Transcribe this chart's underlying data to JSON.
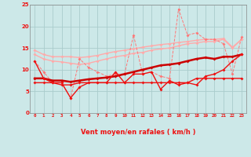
{
  "xlabel": "Vent moyen/en rafales ( km/h )",
  "hours": [
    0,
    1,
    2,
    3,
    4,
    5,
    6,
    7,
    8,
    9,
    10,
    11,
    12,
    13,
    14,
    15,
    16,
    17,
    18,
    19,
    20,
    21,
    22,
    23
  ],
  "line1_upper_pink": [
    14.5,
    13.5,
    13.0,
    13.0,
    13.0,
    12.8,
    13.0,
    13.3,
    13.8,
    14.2,
    14.5,
    14.8,
    15.2,
    15.5,
    15.8,
    16.0,
    16.3,
    16.5,
    16.8,
    17.0,
    17.0,
    17.2,
    15.2,
    17.0
  ],
  "line2_upper_pink": [
    13.5,
    12.5,
    12.0,
    11.8,
    11.5,
    11.2,
    11.5,
    12.0,
    12.5,
    13.0,
    13.3,
    13.8,
    14.0,
    14.5,
    14.8,
    15.0,
    15.5,
    16.0,
    16.2,
    16.5,
    16.5,
    17.0,
    15.0,
    17.0
  ],
  "line3_pink_jagged": [
    12.0,
    9.5,
    7.0,
    7.0,
    3.5,
    12.5,
    10.5,
    9.5,
    8.5,
    9.0,
    9.0,
    18.0,
    9.0,
    9.5,
    8.5,
    8.0,
    24.0,
    18.0,
    18.5,
    17.0,
    17.0,
    16.0,
    9.0,
    17.5
  ],
  "line4_red_smooth": [
    8.0,
    8.0,
    7.5,
    7.5,
    7.2,
    7.5,
    7.8,
    8.0,
    8.2,
    8.5,
    9.0,
    9.5,
    10.0,
    10.5,
    11.0,
    11.2,
    11.5,
    12.0,
    12.5,
    12.8,
    12.5,
    13.0,
    13.0,
    13.5
  ],
  "line5_red_lower": [
    7.0,
    7.0,
    7.0,
    6.5,
    6.5,
    7.0,
    7.0,
    7.0,
    7.0,
    7.0,
    7.0,
    7.0,
    7.0,
    7.0,
    7.0,
    7.0,
    7.0,
    7.0,
    8.0,
    8.0,
    8.0,
    8.0,
    8.0,
    8.0
  ],
  "line6_red_jagged": [
    12.0,
    8.0,
    7.0,
    7.0,
    3.5,
    6.0,
    7.0,
    7.0,
    7.0,
    9.5,
    7.0,
    9.0,
    9.0,
    9.5,
    5.5,
    7.5,
    6.5,
    7.0,
    6.5,
    8.5,
    9.0,
    10.0,
    12.0,
    13.5
  ],
  "ylim": [
    0,
    25
  ],
  "yticks": [
    0,
    5,
    10,
    15,
    20,
    25
  ],
  "bg_color": "#cce8e8",
  "grid_color": "#aacccc",
  "color_light_pink": "#ffaaaa",
  "color_pink": "#ff7777",
  "color_red": "#ee1111",
  "color_dark_red": "#cc0000",
  "arrow_chars": [
    "↓",
    "↓",
    "↓",
    "↓",
    "↖",
    "↘",
    "→",
    "↗",
    "↑",
    "→",
    "↗",
    "↗",
    "↗",
    "↗",
    "↘",
    "↓",
    "↖",
    "↖",
    "←",
    "↙",
    "←",
    "←",
    "←",
    "←"
  ]
}
